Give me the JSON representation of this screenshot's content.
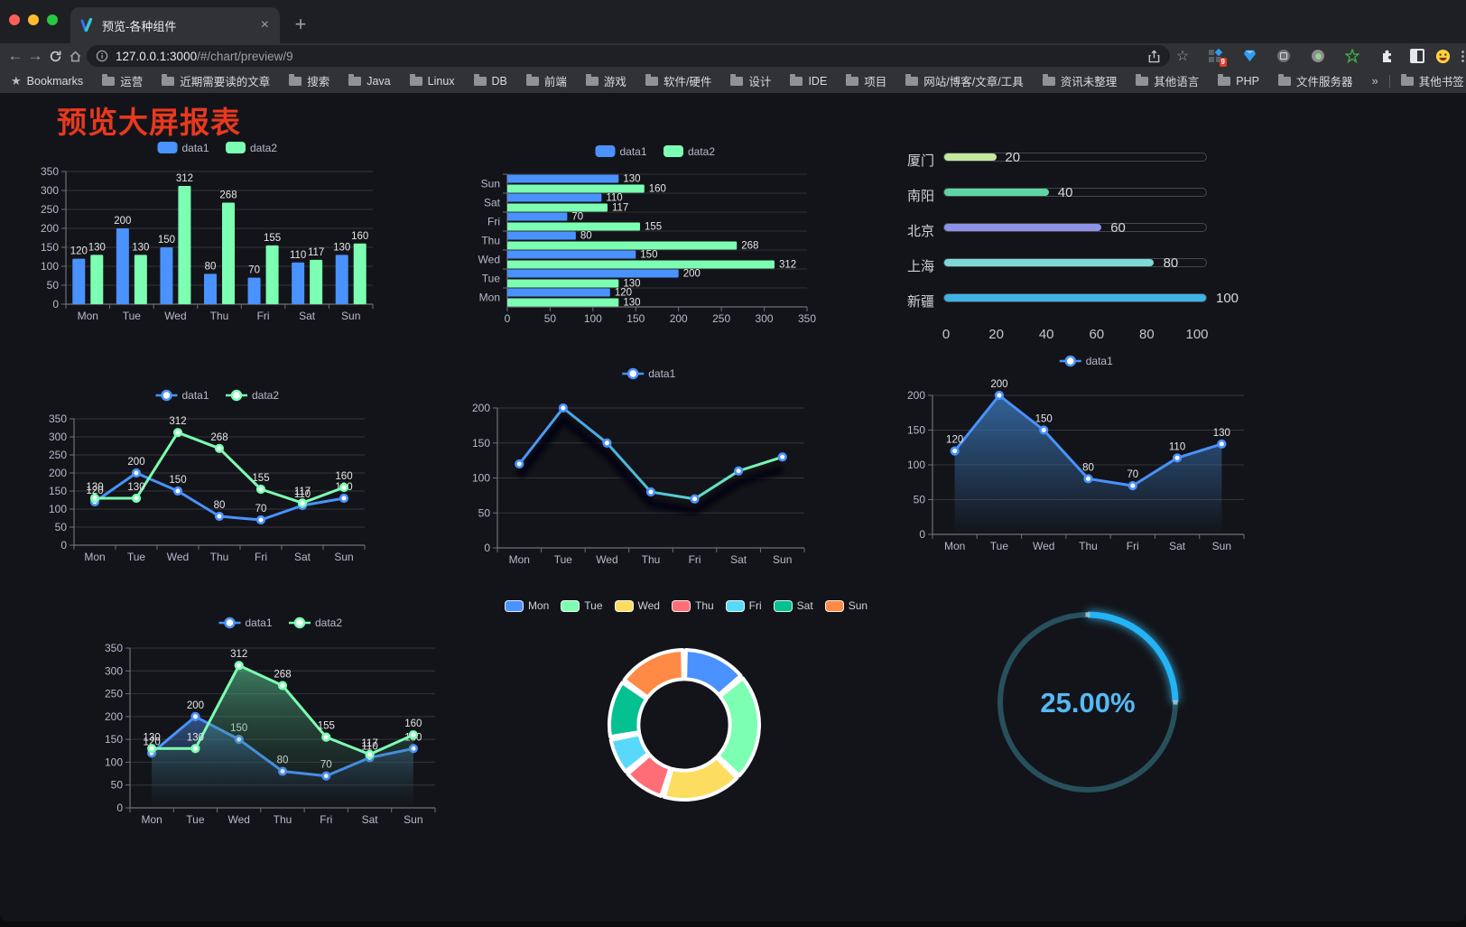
{
  "browser": {
    "tab": {
      "title": "预览-各种组件",
      "close_icon": "×",
      "new_tab_icon": "+"
    },
    "url": {
      "host": "127.0.0.1:3000",
      "path": "/#/chart/preview/9"
    },
    "extension_badge": "9",
    "bookmarks_bar": {
      "label": "Bookmarks",
      "folders": [
        "运营",
        "近期需要读的文章",
        "搜索",
        "Java",
        "Linux",
        "DB",
        "前端",
        "游戏",
        "软件/硬件",
        "设计",
        "IDE",
        "项目",
        "网站/博客/文章/工具",
        "资讯未整理",
        "其他语言",
        "PHP",
        "文件服务器"
      ],
      "overflow_chevron": "»",
      "other_bookmarks": "其他书签"
    }
  },
  "page": {
    "title": "预览大屏报表",
    "title_color": "#e8391f",
    "background": "#131419"
  },
  "palette": {
    "blue": "#4992ff",
    "green": "#7cffb2",
    "yellow": "#fddd60",
    "red": "#ff6e76",
    "light_blue": "#58d9f9",
    "teal": "#05c091",
    "orange": "#ff8a45",
    "axis_label": "#B9B8CE",
    "axis_line": "#6E7079",
    "grid": "rgba(255,255,255,0.14)",
    "value_label": "#E6E6E6"
  },
  "chart_data": [
    {
      "id": "bar-grouped",
      "type": "bar",
      "categories": [
        "Mon",
        "Tue",
        "Wed",
        "Thu",
        "Fri",
        "Sat",
        "Sun"
      ],
      "series": [
        {
          "name": "data1",
          "color": "#4992ff",
          "values": [
            120,
            200,
            150,
            80,
            70,
            110,
            130
          ]
        },
        {
          "name": "data2",
          "color": "#7cffb2",
          "values": [
            130,
            130,
            312,
            268,
            155,
            117,
            160
          ]
        }
      ],
      "ylim": [
        0,
        350
      ],
      "yticks": [
        0,
        50,
        100,
        150,
        200,
        250,
        300,
        350
      ],
      "legend_position": "top",
      "grid": true
    },
    {
      "id": "bar-horizontal",
      "type": "bar",
      "orientation": "horizontal",
      "categories": [
        "Mon",
        "Tue",
        "Wed",
        "Thu",
        "Fri",
        "Sat",
        "Sun"
      ],
      "series": [
        {
          "name": "data1",
          "color": "#4992ff",
          "values": [
            120,
            200,
            150,
            80,
            70,
            110,
            130
          ]
        },
        {
          "name": "data2",
          "color": "#7cffb2",
          "values": [
            130,
            130,
            312,
            268,
            155,
            117,
            160
          ]
        }
      ],
      "xlim": [
        0,
        350
      ],
      "xticks": [
        0,
        50,
        100,
        150,
        200,
        250,
        300,
        350
      ],
      "legend_position": "top"
    },
    {
      "id": "progress-bars",
      "type": "bar",
      "orientation": "horizontal",
      "style": "capsule-track",
      "xlim": [
        0,
        100
      ],
      "xticks": [
        0,
        20,
        40,
        60,
        80,
        100
      ],
      "items": [
        {
          "label": "厦门",
          "value": 20,
          "color": "#c3e79e"
        },
        {
          "label": "南阳",
          "value": 40,
          "color": "#5dd6a6"
        },
        {
          "label": "北京",
          "value": 60,
          "color": "#8b93e8"
        },
        {
          "label": "上海",
          "value": 80,
          "color": "#7fd8d8"
        },
        {
          "label": "新疆",
          "value": 100,
          "color": "#3db3e6"
        }
      ]
    },
    {
      "id": "line-two-series",
      "type": "line",
      "categories": [
        "Mon",
        "Tue",
        "Wed",
        "Thu",
        "Fri",
        "Sat",
        "Sun"
      ],
      "series": [
        {
          "name": "data1",
          "color": "#4992ff",
          "values": [
            120,
            200,
            150,
            80,
            70,
            110,
            130
          ]
        },
        {
          "name": "data2",
          "color": "#7cffb2",
          "values": [
            130,
            130,
            312,
            268,
            155,
            117,
            160
          ]
        }
      ],
      "ylim": [
        0,
        350
      ],
      "yticks": [
        0,
        50,
        100,
        150,
        200,
        250,
        300,
        350
      ],
      "point_labels": true
    },
    {
      "id": "line-gradient",
      "type": "line",
      "categories": [
        "Mon",
        "Tue",
        "Wed",
        "Thu",
        "Fri",
        "Sat",
        "Sun"
      ],
      "series": [
        {
          "name": "data1",
          "gradient": [
            "#4992ff",
            "#4ec0d9",
            "#7cffb2"
          ],
          "values": [
            120,
            200,
            150,
            80,
            70,
            110,
            130
          ]
        }
      ],
      "ylim": [
        0,
        200
      ],
      "yticks": [
        0,
        50,
        100,
        150,
        200
      ],
      "point_labels": false,
      "shadow": true
    },
    {
      "id": "line-area",
      "type": "area",
      "categories": [
        "Mon",
        "Tue",
        "Wed",
        "Thu",
        "Fri",
        "Sat",
        "Sun"
      ],
      "series": [
        {
          "name": "data1",
          "color": "#4992ff",
          "area": true,
          "area_gradient": [
            "rgba(58,119,186,0.8)",
            "rgba(58,119,186,0)"
          ],
          "values": [
            120,
            200,
            150,
            80,
            70,
            110,
            130
          ]
        }
      ],
      "ylim": [
        0,
        200
      ],
      "yticks": [
        0,
        50,
        100,
        150,
        200
      ],
      "point_labels": true
    },
    {
      "id": "line-two-areas",
      "type": "area",
      "categories": [
        "Mon",
        "Tue",
        "Wed",
        "Thu",
        "Fri",
        "Sat",
        "Sun"
      ],
      "series": [
        {
          "name": "data1",
          "color": "#4992ff",
          "area": true,
          "area_gradient": [
            "rgba(62,110,180,0.70)",
            "rgba(40,60,90,0)"
          ],
          "values": [
            120,
            200,
            150,
            80,
            70,
            110,
            130
          ]
        },
        {
          "name": "data2",
          "color": "#7cffb2",
          "area": true,
          "area_gradient": [
            "rgba(90,200,150,0.60)",
            "rgba(40,80,60,0)"
          ],
          "values": [
            130,
            130,
            312,
            268,
            155,
            117,
            160
          ]
        }
      ],
      "ylim": [
        0,
        350
      ],
      "yticks": [
        0,
        50,
        100,
        150,
        200,
        250,
        300,
        350
      ],
      "point_labels": true
    },
    {
      "id": "donut",
      "type": "pie",
      "labels": [
        "Mon",
        "Tue",
        "Wed",
        "Thu",
        "Fri",
        "Sat",
        "Sun"
      ],
      "values": [
        120,
        200,
        150,
        80,
        70,
        110,
        130
      ],
      "colors": [
        "#4992ff",
        "#7cffb2",
        "#fddd60",
        "#ff6e76",
        "#58d9f9",
        "#05c091",
        "#ff8a45"
      ],
      "inner_radius_ratio": 0.61,
      "border_color": "#ffffff",
      "legend_position": "top"
    },
    {
      "id": "gauge",
      "type": "gauge",
      "percent": 25,
      "display": "25.00%",
      "ring_color": "#27505c",
      "arc_color": "#23b4f5",
      "text_color": "#55b9f4"
    }
  ]
}
